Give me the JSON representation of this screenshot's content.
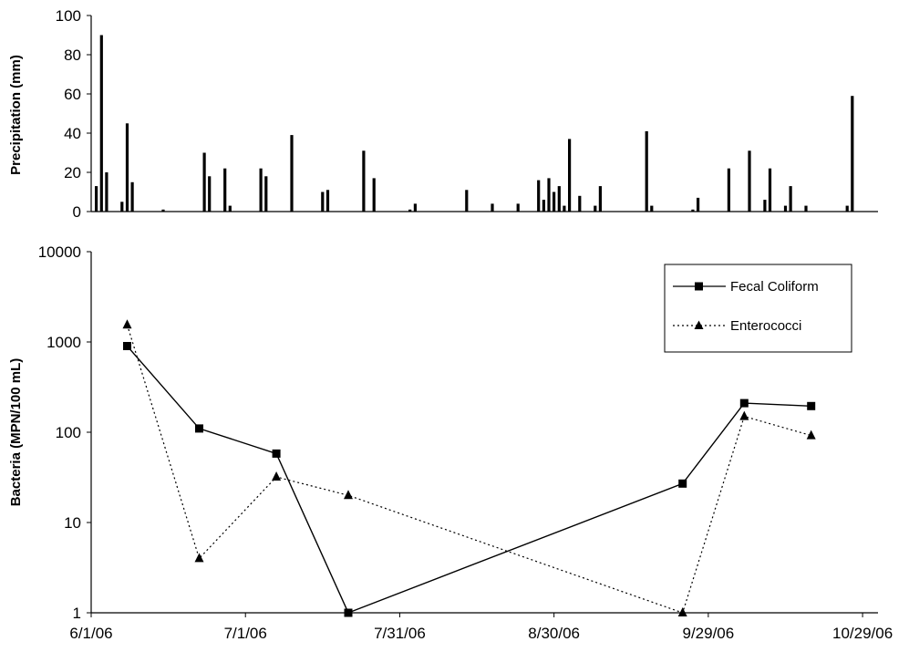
{
  "chart_data": [
    {
      "type": "bar",
      "ylabel": "Precipitation (mm)",
      "ylim": [
        0,
        100
      ],
      "yticks": [
        "0",
        "20",
        "40",
        "60",
        "80",
        "100"
      ],
      "x_range": [
        "2006-06-01",
        "2006-11-01"
      ],
      "grid": false,
      "x": [
        "2006-06-02",
        "2006-06-03",
        "2006-06-04",
        "2006-06-07",
        "2006-06-08",
        "2006-06-09",
        "2006-06-15",
        "2006-06-23",
        "2006-06-24",
        "2006-06-27",
        "2006-06-28",
        "2006-07-04",
        "2006-07-05",
        "2006-07-10",
        "2006-07-16",
        "2006-07-17",
        "2006-07-24",
        "2006-07-26",
        "2006-08-02",
        "2006-08-03",
        "2006-08-13",
        "2006-08-18",
        "2006-08-23",
        "2006-08-27",
        "2006-08-28",
        "2006-08-29",
        "2006-08-30",
        "2006-08-31",
        "2006-09-01",
        "2006-09-02",
        "2006-09-04",
        "2006-09-07",
        "2006-09-08",
        "2006-09-17",
        "2006-09-18",
        "2006-09-26",
        "2006-09-27",
        "2006-10-03",
        "2006-10-07",
        "2006-10-10",
        "2006-10-11",
        "2006-10-14",
        "2006-10-15",
        "2006-10-18",
        "2006-10-26",
        "2006-10-27"
      ],
      "values": [
        13,
        90,
        20,
        5,
        45,
        15,
        1,
        30,
        18,
        22,
        3,
        22,
        18,
        39,
        10,
        11,
        31,
        17,
        1,
        4,
        11,
        4,
        4,
        16,
        6,
        17,
        10,
        13,
        3,
        37,
        8,
        3,
        13,
        41,
        3,
        1,
        7,
        22,
        31,
        6,
        22,
        3,
        13,
        3,
        3,
        59
      ]
    },
    {
      "type": "line",
      "ylabel": "Bacteria (MPN/100 mL)",
      "yscale": "log",
      "ylim": [
        1,
        10000
      ],
      "yticks": [
        "1",
        "10",
        "100",
        "1000",
        "10000"
      ],
      "xticks": [
        "6/1/06",
        "7/1/06",
        "7/31/06",
        "8/30/06",
        "9/29/06",
        "10/29/06"
      ],
      "x_range": [
        "2006-06-01",
        "2006-11-01"
      ],
      "legend": "top-right",
      "grid": false,
      "series": [
        {
          "name": "Fecal Coliform",
          "style": "solid",
          "marker": "square",
          "x": [
            "2006-06-08",
            "2006-06-22",
            "2006-07-07",
            "2006-07-21",
            "2006-09-24",
            "2006-10-06",
            "2006-10-19"
          ],
          "values": [
            900,
            110,
            58,
            1,
            27,
            210,
            195
          ]
        },
        {
          "name": "Enterococci",
          "style": "dotted",
          "marker": "triangle",
          "x": [
            "2006-06-08",
            "2006-06-22",
            "2006-07-07",
            "2006-07-21",
            "2006-09-24",
            "2006-10-06",
            "2006-10-19"
          ],
          "values": [
            1550,
            4,
            32,
            20,
            1,
            150,
            92
          ]
        }
      ]
    }
  ]
}
